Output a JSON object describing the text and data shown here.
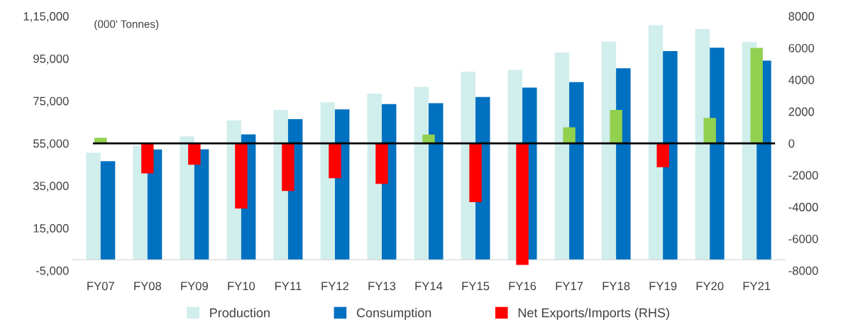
{
  "chart_data": {
    "type": "bar",
    "categories": [
      "FY07",
      "FY08",
      "FY09",
      "FY10",
      "FY11",
      "FY12",
      "FY13",
      "FY14",
      "FY15",
      "FY16",
      "FY17",
      "FY18",
      "FY19",
      "FY20",
      "FY21"
    ],
    "series": [
      {
        "name": "Production",
        "color": "#d0eeec",
        "values": [
          50600,
          53800,
          58300,
          65800,
          70700,
          74300,
          78400,
          81600,
          88800,
          89600,
          97800,
          103000,
          110700,
          108900,
          102800
        ]
      },
      {
        "name": "Consumption",
        "color": "#0070c0",
        "values": [
          46600,
          52100,
          52200,
          59200,
          66400,
          71000,
          73500,
          73900,
          76800,
          81300,
          83900,
          90400,
          98500,
          100100,
          94000
        ]
      },
      {
        "name": "Net Exports/Imports (RHS)",
        "color": "#ff0000",
        "axis": "y2",
        "colors": [
          "#92d050",
          "#ff0000",
          "#ff0000",
          "#ff0000",
          "#ff0000",
          "#ff0000",
          "#ff0000",
          "#92d050",
          "#ff0000",
          "#ff0000",
          "#92d050",
          "#92d050",
          "#ff0000",
          "#92d050",
          "#92d050"
        ],
        "values": [
          350,
          -1900,
          -1350,
          -4100,
          -3000,
          -2200,
          -2550,
          550,
          -3700,
          -7650,
          1000,
          2100,
          -1500,
          1600,
          6000
        ]
      }
    ],
    "ylim": [
      -5000,
      115000
    ],
    "yticks": [
      {
        "value": -5000,
        "label": "-5,000"
      },
      {
        "value": 15000,
        "label": "15,000"
      },
      {
        "value": 35000,
        "label": "35,000"
      },
      {
        "value": 55000,
        "label": "55,000"
      },
      {
        "value": 75000,
        "label": "75,000"
      },
      {
        "value": 95000,
        "label": "95,000"
      },
      {
        "value": 115000,
        "label": "1,15,000"
      }
    ],
    "y2lim": [
      -8000,
      8000
    ],
    "y2ticks": [
      -8000,
      -6000,
      -4000,
      -2000,
      0,
      2000,
      4000,
      6000,
      8000
    ],
    "ref_lines": [
      {
        "axis": "y2",
        "value": 0,
        "color": "#000000"
      }
    ],
    "annotations": [
      "(000' Tonnes)"
    ],
    "legend": "bottom",
    "grid": false
  }
}
